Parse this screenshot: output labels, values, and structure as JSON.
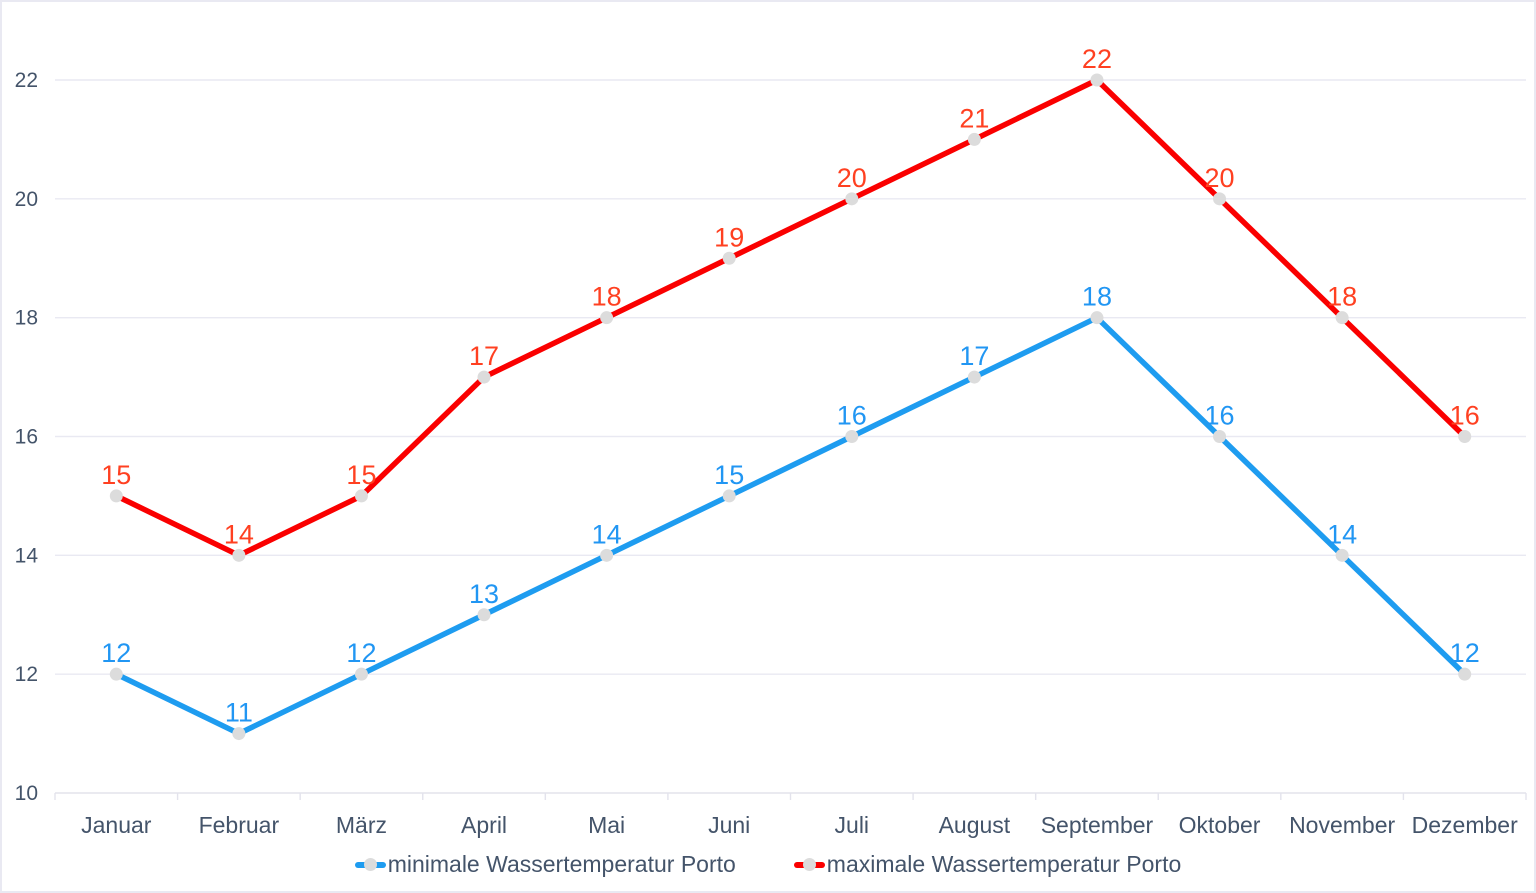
{
  "chart_data": {
    "type": "line",
    "title": "",
    "categories": [
      "Januar",
      "Februar",
      "März",
      "April",
      "Mai",
      "Juni",
      "Juli",
      "August",
      "September",
      "Oktober",
      "November",
      "Dezember"
    ],
    "series": [
      {
        "name": "minimale Wassertemperatur Porto",
        "values": [
          12,
          11,
          12,
          13,
          14,
          15,
          16,
          17,
          18,
          16,
          14,
          12
        ],
        "line_color": "#1e9cf0",
        "label_color": "#2196f3"
      },
      {
        "name": "maximale Wassertemperatur Porto",
        "values": [
          15,
          14,
          15,
          17,
          18,
          19,
          20,
          21,
          22,
          20,
          18,
          16
        ],
        "line_color": "#fa0000",
        "label_color": "#ff4021"
      }
    ],
    "xlabel": "",
    "ylabel": "",
    "ylim": [
      10,
      22
    ],
    "yticks": [
      10,
      12,
      14,
      16,
      18,
      20,
      22
    ],
    "grid": true,
    "data_labels": true,
    "legend_position": "bottom",
    "marker_color": "#dcdcdc",
    "axis_text_color": "#44546a",
    "grid_color": "#e9e9f2",
    "axis_line_color": "#e3e3ec"
  }
}
